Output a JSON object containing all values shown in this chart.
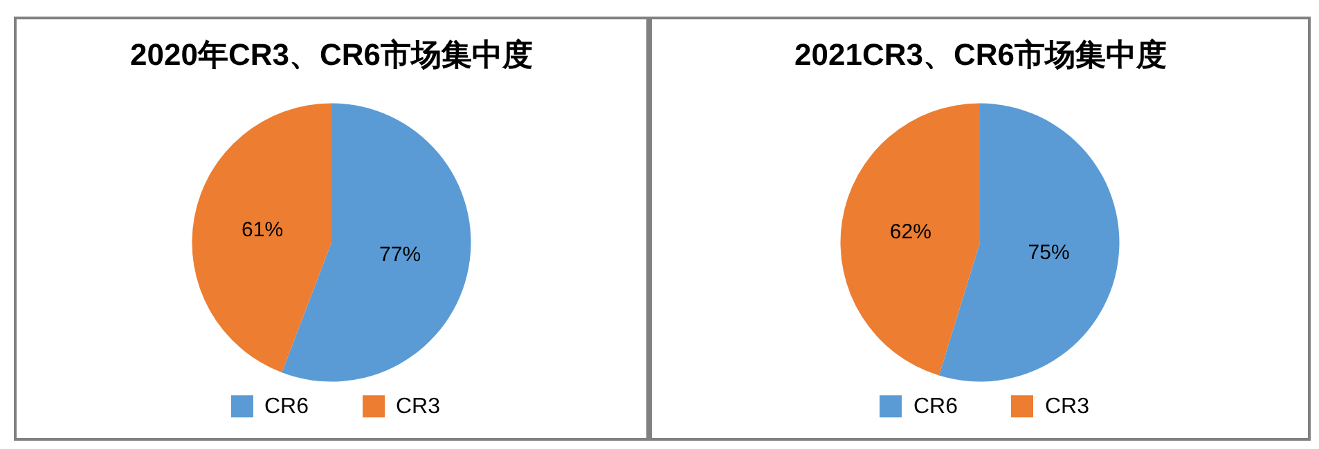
{
  "chart_data": [
    {
      "type": "pie",
      "title": "2020年CR3、CR6市场集中度",
      "categories": [
        "CR6",
        "CR3"
      ],
      "values": [
        77,
        61
      ],
      "colors": [
        "#5b9bd5",
        "#ed7d31"
      ],
      "value_labels": [
        "77%",
        "61%"
      ],
      "legend": "bottom"
    },
    {
      "type": "pie",
      "title": "2021CR3、CR6市场集中度",
      "categories": [
        "CR6",
        "CR3"
      ],
      "values": [
        75,
        62
      ],
      "colors": [
        "#5b9bd5",
        "#ed7d31"
      ],
      "value_labels": [
        "75%",
        "62%"
      ],
      "legend": "bottom"
    }
  ]
}
